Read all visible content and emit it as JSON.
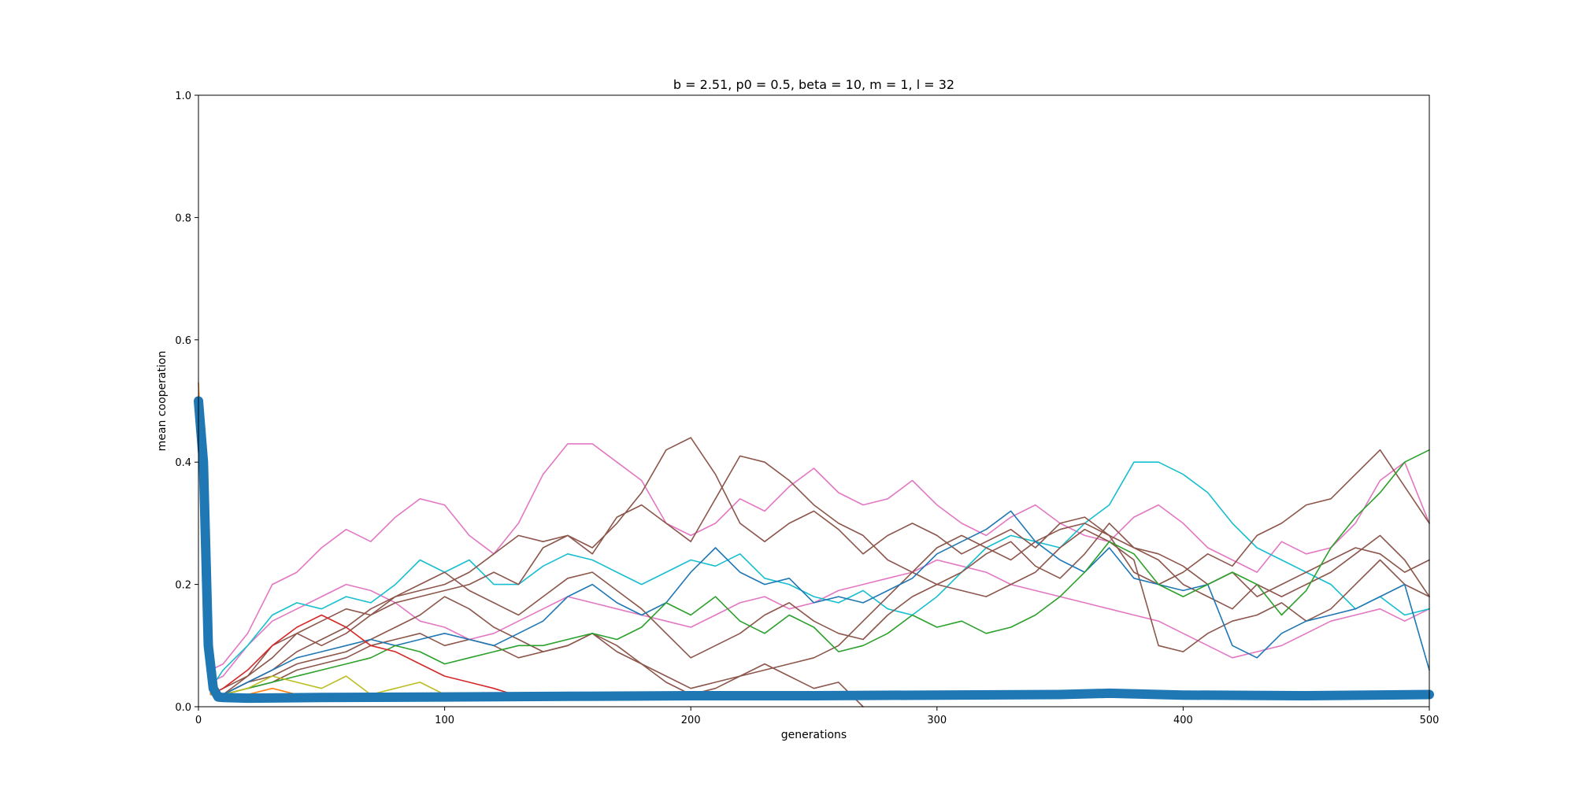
{
  "chart_data": {
    "type": "line",
    "title": "b = 2.51, p0 = 0.5, beta = 10, m = 1, l = 32",
    "xlabel": "generations",
    "ylabel": "mean cooperation",
    "xlim": [
      0,
      500
    ],
    "ylim": [
      0,
      1.0
    ],
    "xticks": [
      "0",
      "100",
      "200",
      "300",
      "400",
      "500"
    ],
    "yticks": [
      "0.0",
      "0.2",
      "0.4",
      "0.6",
      "0.8",
      "1.0"
    ],
    "grid": false,
    "legend": "none",
    "series": [
      {
        "color": "#e377c2",
        "x": [
          0,
          5,
          10,
          20,
          30,
          40,
          50,
          60,
          70,
          80,
          90,
          100,
          110,
          120,
          130,
          140,
          150,
          160,
          170,
          180,
          190,
          200,
          210,
          220,
          230,
          240,
          250,
          260,
          270,
          280,
          290,
          300,
          310,
          320,
          330,
          340,
          350,
          360,
          370,
          380,
          390,
          400,
          410,
          420,
          430,
          440,
          450,
          460,
          470,
          480,
          490,
          500
        ],
        "y": [
          0.5,
          0.06,
          0.07,
          0.12,
          0.2,
          0.22,
          0.26,
          0.29,
          0.27,
          0.31,
          0.34,
          0.33,
          0.28,
          0.25,
          0.3,
          0.38,
          0.43,
          0.43,
          0.4,
          0.37,
          0.3,
          0.28,
          0.3,
          0.34,
          0.32,
          0.36,
          0.39,
          0.35,
          0.33,
          0.34,
          0.37,
          0.33,
          0.3,
          0.28,
          0.31,
          0.33,
          0.3,
          0.28,
          0.27,
          0.31,
          0.33,
          0.3,
          0.26,
          0.24,
          0.22,
          0.27,
          0.25,
          0.26,
          0.3,
          0.37,
          0.4,
          0.3
        ]
      },
      {
        "color": "#e377c2",
        "x": [
          0,
          5,
          10,
          20,
          30,
          40,
          50,
          60,
          70,
          80,
          90,
          100,
          110,
          120,
          130,
          140,
          150,
          160,
          170,
          180,
          190,
          200,
          210,
          220,
          230,
          240,
          250,
          260,
          270,
          280,
          290,
          300,
          310,
          320,
          330,
          340,
          350,
          360,
          370,
          380,
          390,
          400,
          410,
          420,
          430,
          440,
          450,
          460,
          470,
          480,
          490,
          500
        ],
        "y": [
          0.5,
          0.04,
          0.05,
          0.1,
          0.14,
          0.16,
          0.18,
          0.2,
          0.19,
          0.17,
          0.14,
          0.13,
          0.11,
          0.12,
          0.14,
          0.16,
          0.18,
          0.17,
          0.16,
          0.15,
          0.14,
          0.13,
          0.15,
          0.17,
          0.18,
          0.16,
          0.17,
          0.19,
          0.2,
          0.21,
          0.22,
          0.24,
          0.23,
          0.22,
          0.2,
          0.19,
          0.18,
          0.17,
          0.16,
          0.15,
          0.14,
          0.12,
          0.1,
          0.08,
          0.09,
          0.1,
          0.12,
          0.14,
          0.15,
          0.16,
          0.14,
          0.16
        ]
      },
      {
        "color": "#17becf",
        "x": [
          0,
          5,
          10,
          20,
          30,
          40,
          50,
          60,
          70,
          80,
          90,
          100,
          110,
          120,
          130,
          140,
          150,
          160,
          170,
          180,
          190,
          200,
          210,
          220,
          230,
          240,
          250,
          260,
          270,
          280,
          290,
          300,
          310,
          320,
          330,
          340,
          350,
          360,
          370,
          380,
          390,
          400,
          410,
          420,
          430,
          440,
          450,
          460,
          470,
          480,
          490,
          500
        ],
        "y": [
          0.5,
          0.03,
          0.06,
          0.1,
          0.15,
          0.17,
          0.16,
          0.18,
          0.17,
          0.2,
          0.24,
          0.22,
          0.24,
          0.2,
          0.2,
          0.23,
          0.25,
          0.24,
          0.22,
          0.2,
          0.22,
          0.24,
          0.23,
          0.25,
          0.21,
          0.2,
          0.18,
          0.17,
          0.19,
          0.16,
          0.15,
          0.18,
          0.22,
          0.26,
          0.28,
          0.27,
          0.26,
          0.3,
          0.33,
          0.4,
          0.4,
          0.38,
          0.35,
          0.3,
          0.26,
          0.24,
          0.22,
          0.2,
          0.16,
          0.18,
          0.15,
          0.16
        ]
      },
      {
        "color": "#8c564b",
        "x": [
          0,
          5,
          10,
          20,
          30,
          40,
          50,
          60,
          70,
          80,
          90,
          100,
          110,
          120,
          130,
          140,
          150,
          160,
          170,
          180,
          190,
          200,
          210,
          220,
          230,
          240,
          250,
          260,
          270,
          280,
          290,
          300,
          310,
          320,
          330,
          340,
          350,
          360,
          370,
          380,
          390,
          400,
          410,
          420,
          430,
          440,
          450,
          460,
          470,
          480,
          490,
          500
        ],
        "y": [
          0.5,
          0.02,
          0.03,
          0.05,
          0.08,
          0.12,
          0.14,
          0.16,
          0.15,
          0.18,
          0.19,
          0.2,
          0.22,
          0.25,
          0.28,
          0.27,
          0.28,
          0.26,
          0.3,
          0.35,
          0.42,
          0.44,
          0.38,
          0.3,
          0.27,
          0.3,
          0.32,
          0.29,
          0.25,
          0.28,
          0.3,
          0.28,
          0.25,
          0.27,
          0.29,
          0.26,
          0.3,
          0.31,
          0.28,
          0.22,
          0.2,
          0.22,
          0.25,
          0.23,
          0.28,
          0.3,
          0.33,
          0.34,
          0.38,
          0.42,
          0.36,
          0.3
        ]
      },
      {
        "color": "#8c564b",
        "x": [
          0,
          5,
          10,
          20,
          30,
          40,
          50,
          60,
          70,
          80,
          90,
          100,
          110,
          120,
          130,
          140,
          150,
          160,
          170,
          180,
          190,
          200,
          210,
          220,
          230,
          240,
          250,
          260,
          270,
          280,
          290,
          300,
          310,
          320,
          330,
          340,
          350,
          360,
          370,
          380,
          390,
          400,
          410,
          420,
          430,
          440,
          450,
          460,
          470,
          480,
          490,
          500
        ],
        "y": [
          0.5,
          0.02,
          0.02,
          0.05,
          0.1,
          0.12,
          0.1,
          0.12,
          0.15,
          0.17,
          0.18,
          0.19,
          0.2,
          0.22,
          0.2,
          0.26,
          0.28,
          0.25,
          0.31,
          0.33,
          0.3,
          0.27,
          0.34,
          0.41,
          0.4,
          0.37,
          0.33,
          0.3,
          0.28,
          0.24,
          0.22,
          0.26,
          0.28,
          0.26,
          0.24,
          0.27,
          0.29,
          0.3,
          0.28,
          0.26,
          0.25,
          0.23,
          0.2,
          0.22,
          0.18,
          0.2,
          0.22,
          0.24,
          0.26,
          0.25,
          0.22,
          0.24
        ]
      },
      {
        "color": "#8c564b",
        "x": [
          0,
          5,
          10,
          20,
          30,
          40,
          50,
          60,
          70,
          80,
          90,
          100,
          110,
          120,
          130,
          140,
          150,
          160,
          170,
          180,
          190,
          200,
          210,
          220,
          230,
          240,
          250,
          260,
          270,
          280,
          290,
          300,
          310,
          320,
          330,
          340,
          350,
          360,
          370,
          380,
          390,
          400,
          410,
          420,
          430,
          440,
          450,
          460,
          470,
          480,
          490,
          500
        ],
        "y": [
          0.5,
          0.02,
          0.02,
          0.04,
          0.06,
          0.09,
          0.11,
          0.13,
          0.16,
          0.18,
          0.2,
          0.22,
          0.19,
          0.17,
          0.15,
          0.18,
          0.21,
          0.22,
          0.19,
          0.16,
          0.12,
          0.08,
          0.1,
          0.12,
          0.15,
          0.17,
          0.14,
          0.12,
          0.11,
          0.15,
          0.18,
          0.2,
          0.22,
          0.25,
          0.27,
          0.23,
          0.21,
          0.25,
          0.3,
          0.26,
          0.24,
          0.2,
          0.18,
          0.16,
          0.2,
          0.18,
          0.2,
          0.22,
          0.25,
          0.28,
          0.24,
          0.18
        ]
      },
      {
        "color": "#8c564b",
        "x": [
          0,
          5,
          10,
          20,
          30,
          40,
          50,
          60,
          70,
          80,
          90,
          100,
          110,
          120,
          130,
          140,
          150,
          160,
          170,
          180,
          190,
          200,
          210,
          220,
          230,
          240,
          250,
          260,
          270,
          280,
          290,
          300,
          310,
          320,
          330,
          340,
          350,
          360,
          370,
          380,
          390,
          400,
          410,
          420,
          430,
          440,
          450,
          460,
          470,
          480,
          490,
          500
        ],
        "y": [
          0.5,
          0.02,
          0.02,
          0.04,
          0.05,
          0.07,
          0.08,
          0.09,
          0.11,
          0.13,
          0.15,
          0.18,
          0.16,
          0.13,
          0.11,
          0.09,
          0.1,
          0.12,
          0.09,
          0.07,
          0.05,
          0.03,
          0.04,
          0.05,
          0.06,
          0.07,
          0.08,
          0.1,
          0.14,
          0.18,
          0.22,
          0.2,
          0.19,
          0.18,
          0.2,
          0.22,
          0.26,
          0.29,
          0.27,
          0.24,
          0.1,
          0.09,
          0.12,
          0.14,
          0.15,
          0.17,
          0.14,
          0.16,
          0.2,
          0.24,
          0.2,
          0.18
        ]
      },
      {
        "color": "#8c564b",
        "x": [
          0,
          5,
          10,
          20,
          30,
          40,
          50,
          60,
          70,
          80,
          90,
          100,
          110,
          120,
          130,
          140,
          150,
          160,
          170,
          180,
          190,
          200,
          210,
          220,
          230,
          240,
          250,
          260,
          270
        ],
        "y": [
          0.5,
          0.02,
          0.02,
          0.03,
          0.04,
          0.06,
          0.07,
          0.08,
          0.1,
          0.11,
          0.12,
          0.1,
          0.11,
          0.1,
          0.08,
          0.09,
          0.1,
          0.12,
          0.1,
          0.07,
          0.04,
          0.02,
          0.03,
          0.05,
          0.07,
          0.05,
          0.03,
          0.04,
          0.0
        ]
      },
      {
        "color": "#1f77b4",
        "x": [
          0,
          5,
          10,
          20,
          30,
          40,
          50,
          60,
          70,
          80,
          90,
          100,
          110,
          120,
          130,
          140,
          150,
          160,
          170,
          180,
          190,
          200,
          210,
          220,
          230,
          240,
          250,
          260,
          270,
          280,
          290,
          300,
          310,
          320,
          330,
          340,
          350,
          360,
          370,
          380,
          390,
          400,
          410,
          420,
          430,
          440,
          450,
          460,
          470,
          480,
          490,
          500
        ],
        "y": [
          0.5,
          0.02,
          0.02,
          0.04,
          0.06,
          0.08,
          0.09,
          0.1,
          0.11,
          0.1,
          0.11,
          0.12,
          0.11,
          0.1,
          0.12,
          0.14,
          0.18,
          0.2,
          0.17,
          0.15,
          0.17,
          0.22,
          0.26,
          0.22,
          0.2,
          0.21,
          0.17,
          0.18,
          0.17,
          0.19,
          0.21,
          0.25,
          0.27,
          0.29,
          0.32,
          0.27,
          0.24,
          0.22,
          0.26,
          0.21,
          0.2,
          0.19,
          0.2,
          0.1,
          0.08,
          0.12,
          0.14,
          0.15,
          0.16,
          0.18,
          0.2,
          0.06
        ]
      },
      {
        "color": "#2ca02c",
        "x": [
          0,
          5,
          10,
          20,
          30,
          40,
          50,
          60,
          70,
          80,
          90,
          100,
          110,
          120,
          130,
          140,
          150,
          160,
          170,
          180,
          190,
          200,
          210,
          220,
          230,
          240,
          250,
          260,
          270,
          280,
          290,
          300,
          310,
          320,
          330,
          340,
          350,
          360,
          370,
          380,
          390,
          400,
          410,
          420,
          430,
          440,
          450,
          460,
          470,
          480,
          490,
          500
        ],
        "y": [
          0.5,
          0.02,
          0.02,
          0.03,
          0.04,
          0.05,
          0.06,
          0.07,
          0.08,
          0.1,
          0.09,
          0.07,
          0.08,
          0.09,
          0.1,
          0.1,
          0.11,
          0.12,
          0.11,
          0.13,
          0.17,
          0.15,
          0.18,
          0.14,
          0.12,
          0.15,
          0.13,
          0.09,
          0.1,
          0.12,
          0.15,
          0.13,
          0.14,
          0.12,
          0.13,
          0.15,
          0.18,
          0.22,
          0.27,
          0.25,
          0.2,
          0.18,
          0.2,
          0.22,
          0.2,
          0.15,
          0.19,
          0.26,
          0.31,
          0.35,
          0.4,
          0.42
        ]
      },
      {
        "color": "#d62728",
        "x": [
          0,
          5,
          10,
          20,
          30,
          40,
          50,
          60,
          70,
          80,
          90,
          100,
          110,
          120,
          128
        ],
        "y": [
          0.5,
          0.02,
          0.03,
          0.06,
          0.1,
          0.13,
          0.15,
          0.13,
          0.1,
          0.09,
          0.07,
          0.05,
          0.04,
          0.03,
          0.02
        ]
      },
      {
        "color": "#bcbd22",
        "x": [
          0,
          5,
          10,
          20,
          30,
          40,
          50,
          60,
          70,
          80,
          90,
          100
        ],
        "y": [
          0.5,
          0.02,
          0.02,
          0.03,
          0.05,
          0.04,
          0.03,
          0.05,
          0.02,
          0.03,
          0.04,
          0.02
        ]
      },
      {
        "color": "#ff7f0e",
        "x": [
          0,
          5,
          10,
          20,
          30,
          40
        ],
        "y": [
          0.53,
          0.02,
          0.02,
          0.02,
          0.03,
          0.02
        ]
      },
      {
        "color": "#1f77b4",
        "width": 12,
        "x": [
          0,
          2,
          4,
          6,
          8,
          10,
          20,
          50,
          100,
          150,
          200,
          250,
          300,
          350,
          370,
          400,
          450,
          500
        ],
        "y": [
          0.5,
          0.4,
          0.1,
          0.03,
          0.016,
          0.015,
          0.014,
          0.015,
          0.016,
          0.017,
          0.018,
          0.018,
          0.019,
          0.02,
          0.022,
          0.019,
          0.018,
          0.02
        ]
      }
    ]
  }
}
